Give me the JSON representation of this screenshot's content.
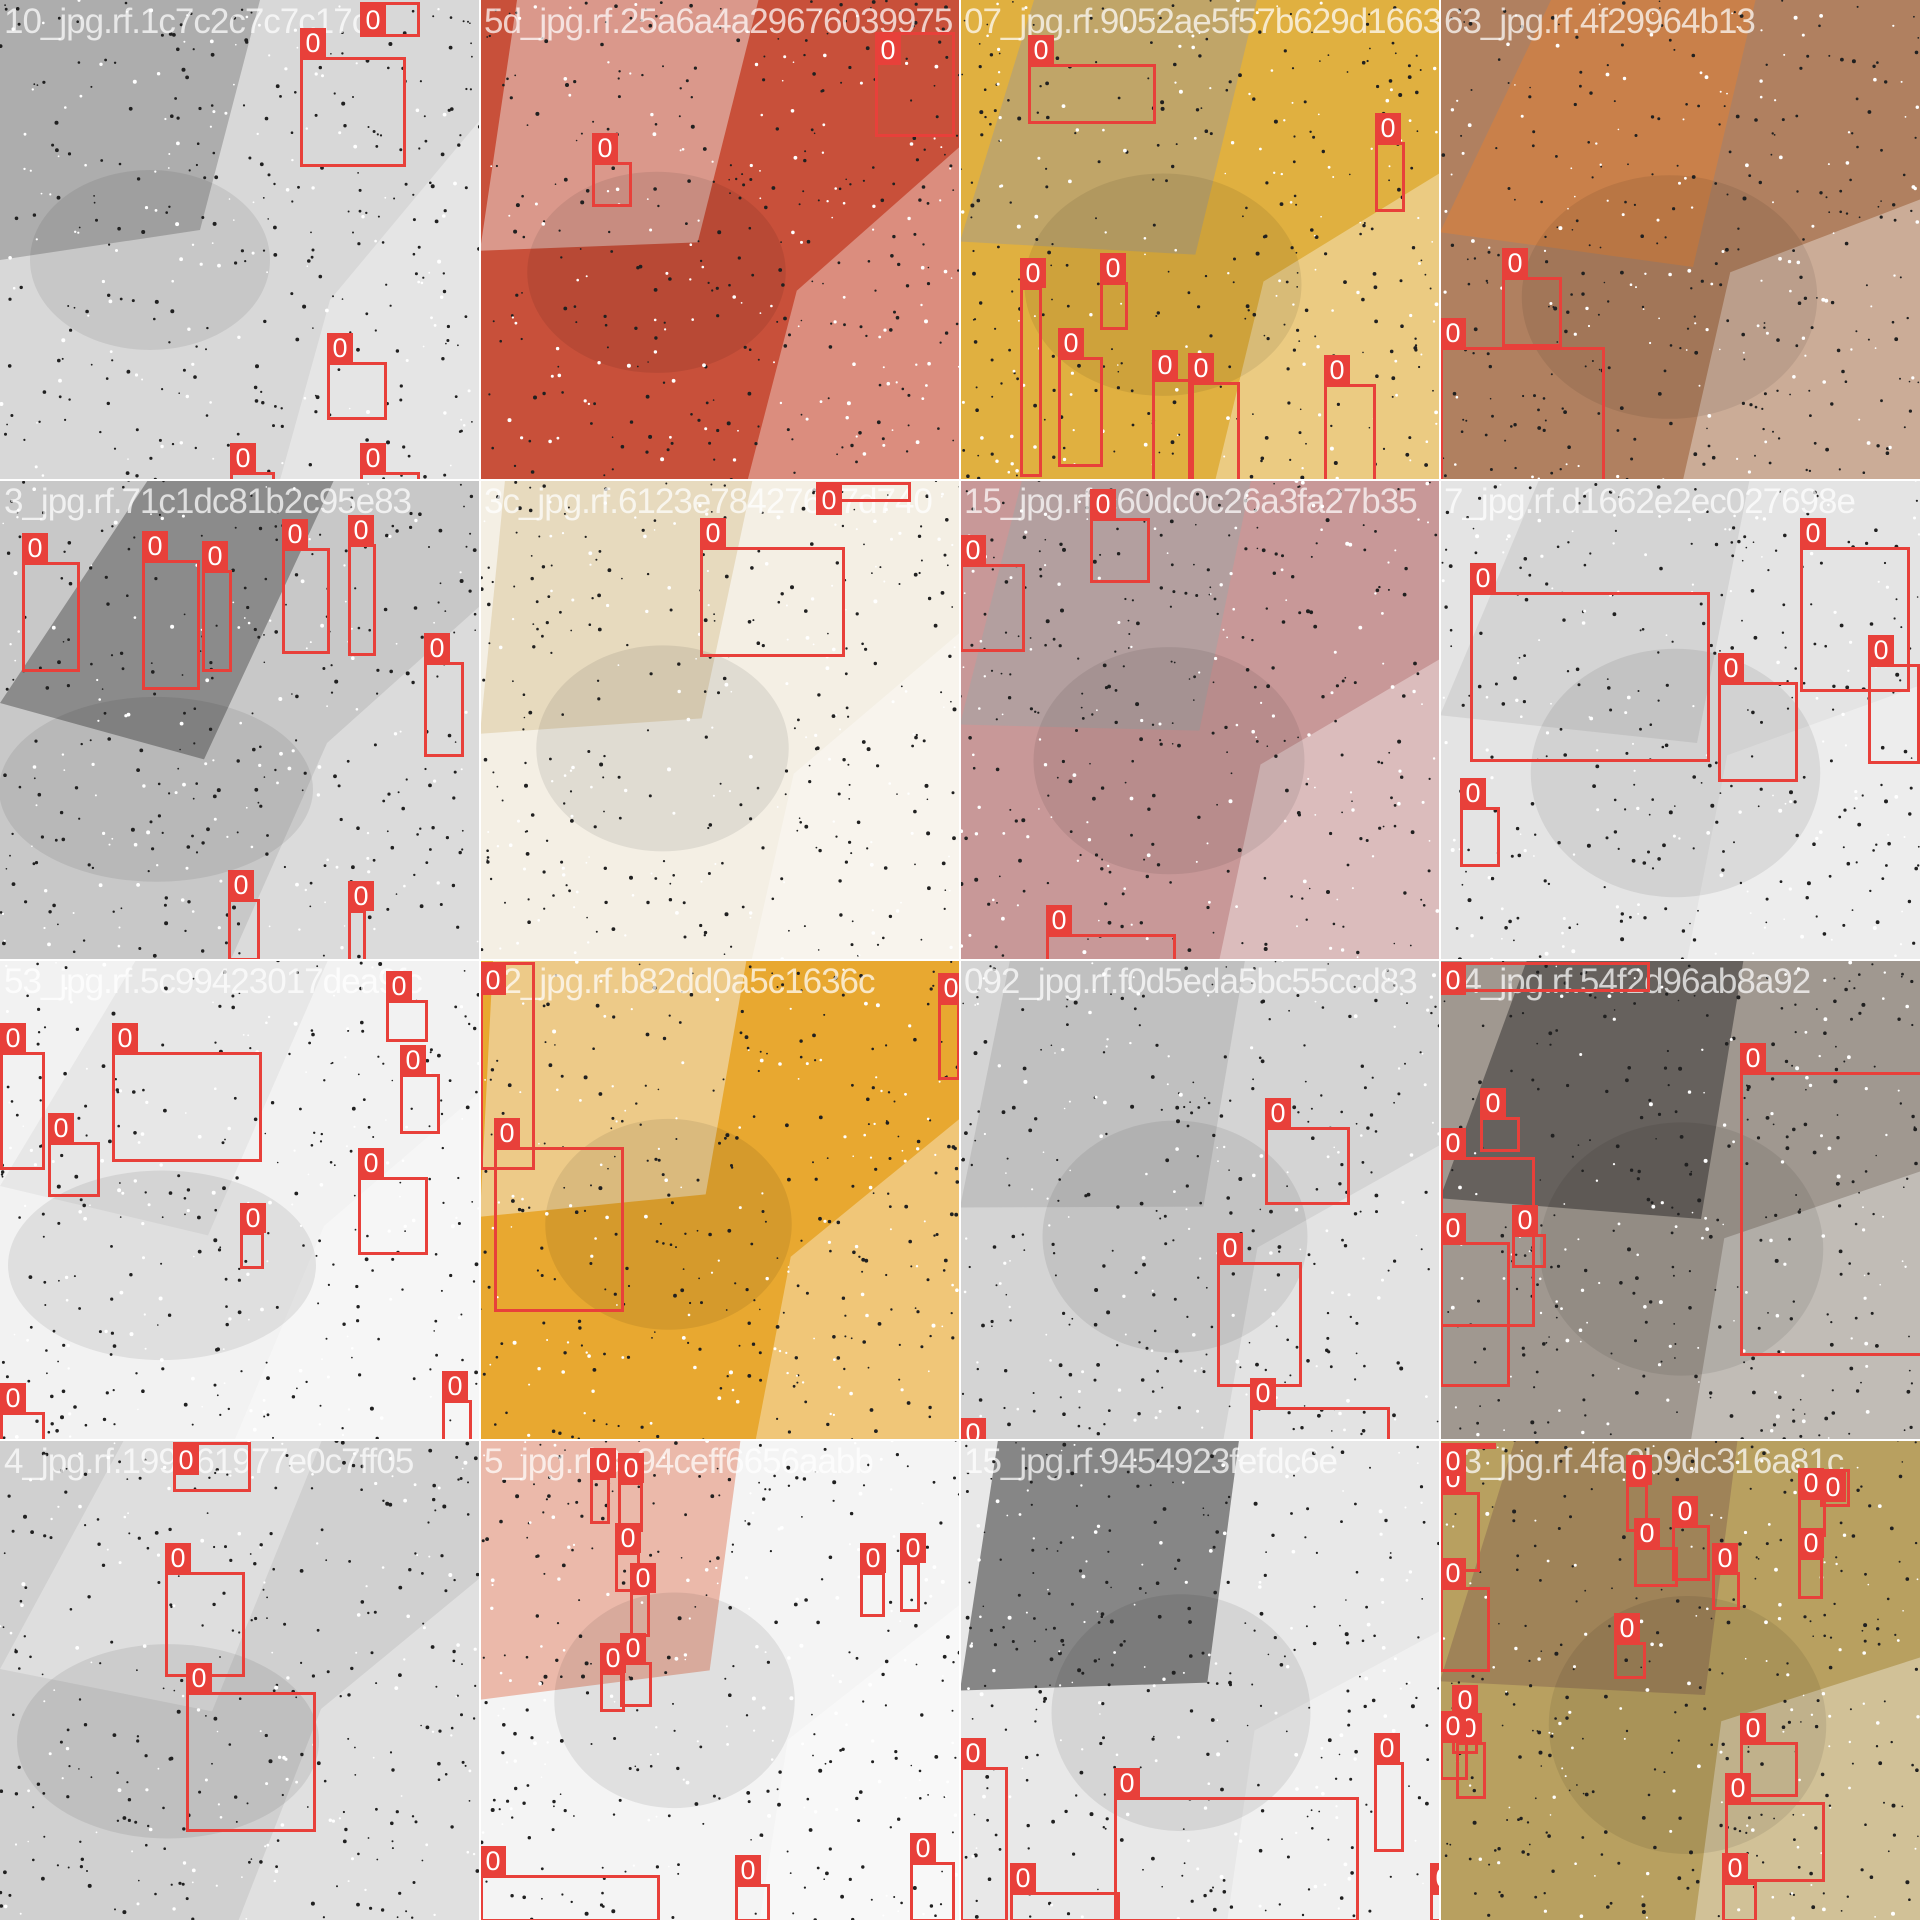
{
  "mosaic": {
    "class_label": "0",
    "box_color": "#e8403a",
    "tiles": [
      {
        "file_label": "10_jpg.rf.1c7c2c7c7c17c",
        "base": "#d8d8d8",
        "accent": "#7a7a7a",
        "tint": "gray"
      },
      {
        "file_label": "5d_jpg.rf.25a6a4a29676039975",
        "base": "#c8503a",
        "accent": "#f0f0f0",
        "tint": "red"
      },
      {
        "file_label": "07_jpg.rf.9052ae5f57b629d1663",
        "base": "#e0b040",
        "accent": "#9a9a9a",
        "tint": "yellow"
      },
      {
        "file_label": "63_jpg.rf.4f29964b13",
        "base": "#b08060",
        "accent": "#e88030",
        "tint": "orange"
      },
      {
        "file_label": "3_jpg.rf.71c1dc81b2c95e83",
        "base": "#c8c8c8",
        "accent": "#404040",
        "tint": "gray"
      },
      {
        "file_label": "3c_jpg.rf.6123e78427647d740",
        "base": "#f4efe4",
        "accent": "#d8c090",
        "tint": "cream"
      },
      {
        "file_label": "15_jpg.rf.c60dc0c26a3fa27b35",
        "base": "#c89898",
        "accent": "#9aa8a8",
        "tint": "rose"
      },
      {
        "file_label": "7_jpg.rf.d1662e2ec027698e",
        "base": "#e4e4e4",
        "accent": "#c0c0c0",
        "tint": "gray"
      },
      {
        "file_label": "53_jpg.rf.5c99423017dea9fc",
        "base": "#f2f2f2",
        "accent": "#dadada",
        "tint": "white"
      },
      {
        "file_label": "52_jpg.rf.b82dd0a5c1636c",
        "base": "#e8a830",
        "accent": "#f4f4f4",
        "tint": "amber"
      },
      {
        "file_label": "092_jpg.rf.f0d5eda5bc55ccd83",
        "base": "#d4d4d4",
        "accent": "#a8a8a8",
        "tint": "gray"
      },
      {
        "file_label": "34_jpg.rf.54f2d96ab8a92",
        "base": "#a09890",
        "accent": "#202020",
        "tint": "brown"
      },
      {
        "file_label": "4_jpg.rf.199261977e0c7ff05",
        "base": "#d0d0d0",
        "accent": "#f0f0f0",
        "tint": "gray"
      },
      {
        "file_label": "5_jpg.rf.3c94ceff6656aabb",
        "base": "#f4f4f4",
        "accent": "#e07050",
        "tint": "pink"
      },
      {
        "file_label": "15_jpg.rf.9454923fefdc6e",
        "base": "#e8e8e8",
        "accent": "#101010",
        "tint": "gray"
      },
      {
        "file_label": "23_jpg.rf.4fa2b9dc316a81c",
        "base": "#b8a060",
        "accent": "#806050",
        "tint": "olive"
      }
    ]
  }
}
